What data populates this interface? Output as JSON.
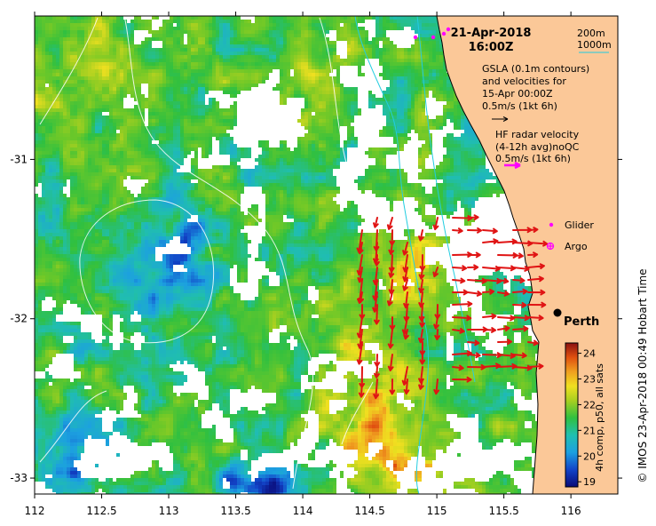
{
  "map": {
    "date": "21-Apr-2018",
    "time": "16:00Z",
    "place_label": "Perth",
    "lon_ticks": [
      "112",
      "112.5",
      "113",
      "113.5",
      "114",
      "114.5",
      "115",
      "115.5",
      "116"
    ],
    "lat_ticks": [
      "-31",
      "-32",
      "-33"
    ],
    "colors": {
      "land": "#fbc898",
      "isobath": "#22cde0",
      "gsla_contour": "#ffffff",
      "hf_arrow": "#e01414",
      "glider": "#ff00ff"
    }
  },
  "legend": {
    "isobath_200": "200m",
    "isobath_1000": "1000m",
    "gsla_lines": [
      "GSLA (0.1m contours)",
      "and velocities for",
      "15-Apr 00:00Z",
      "0.5m/s (1kt 6h)"
    ],
    "hf_lines": [
      "HF radar velocity",
      "(4-12h avg)noQC",
      "0.5m/s (1kt 6h)"
    ],
    "glider": "Glider",
    "argo": "Argo"
  },
  "colorbar": {
    "ticks": [
      "24",
      "23",
      "22",
      "21",
      "20",
      "19"
    ],
    "label": "4h comp, p50, all sats",
    "range": [
      18.8,
      24.4
    ]
  },
  "credit": "© IMOS 23-Apr-2018 00:49 Hobart Time"
}
